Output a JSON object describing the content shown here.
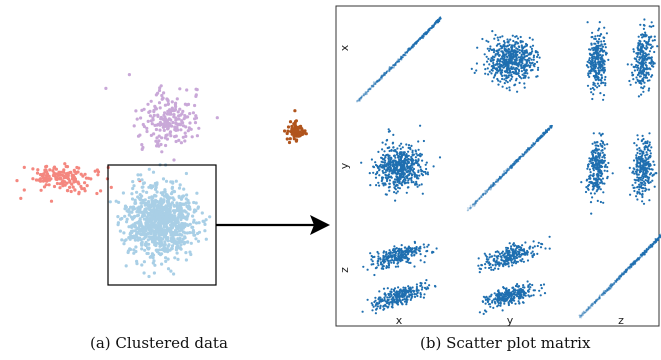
{
  "captions": {
    "a": "(a) Clustered data",
    "b": "(b) Scatter plot matrix"
  },
  "matrix": {
    "variables": [
      "x",
      "y",
      "z"
    ],
    "point_color": "#1f6fb0"
  },
  "clusters": [
    {
      "name": "pink",
      "color": "#f4877f"
    },
    {
      "name": "lavender",
      "color": "#c9a8d8"
    },
    {
      "name": "brown",
      "color": "#b0541c"
    },
    {
      "name": "light-blue",
      "color": "#a9cfe6"
    }
  ],
  "arrow_color": "#000000"
}
